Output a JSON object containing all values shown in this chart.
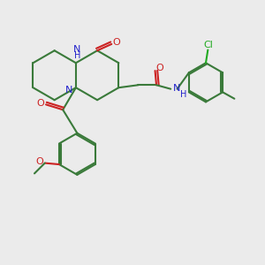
{
  "bg_color": "#ebebeb",
  "bond_color": "#3a7a3a",
  "N_color": "#2222cc",
  "O_color": "#cc2222",
  "Cl_color": "#22aa22",
  "line_width": 1.5,
  "figsize": [
    3.0,
    3.0
  ],
  "dpi": 100,
  "xlim": [
    0,
    10
  ],
  "ylim": [
    0,
    10
  ]
}
